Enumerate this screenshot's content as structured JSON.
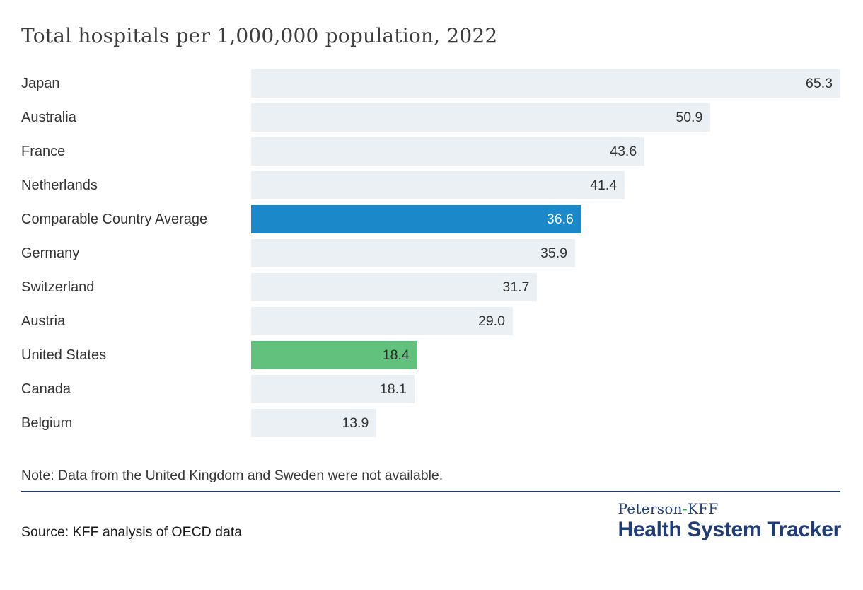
{
  "page": {
    "title": "Total hospitals per 1,000,000 population, 2022",
    "note": "Note: Data from the United Kingdom and Sweden were not available.",
    "source": "Source: KFF analysis of OECD data",
    "logo": {
      "peterson": "Peterson",
      "hyphen": "-",
      "kff": "KFF",
      "bottom": "Health System Tracker"
    }
  },
  "colors": {
    "bar_default": "#ebf0f4",
    "bar_average": "#1a88c9",
    "bar_us": "#62c17c",
    "value_on_light": "#333333",
    "value_on_blue": "#ffffff",
    "value_on_green": "#2b2b2b",
    "rule_navy": "#1c3a6d",
    "logo_navy": "#203d78",
    "logo_hyphen_green": "#3fa45b"
  },
  "chart_data": {
    "type": "bar",
    "orientation": "horizontal",
    "title": "Total hospitals per 1,000,000 population, 2022",
    "categories": [
      "Japan",
      "Australia",
      "France",
      "Netherlands",
      "Comparable Country Average",
      "Germany",
      "Switzerland",
      "Austria",
      "United States",
      "Canada",
      "Belgium"
    ],
    "values": [
      65.3,
      50.9,
      43.6,
      41.4,
      36.6,
      35.9,
      31.7,
      29.0,
      18.4,
      18.1,
      13.9
    ],
    "value_labels": [
      "65.3",
      "50.9",
      "43.6",
      "41.4",
      "36.6",
      "35.9",
      "31.7",
      "29.0",
      "18.4",
      "18.1",
      "13.9"
    ],
    "bar_styles": [
      "default",
      "default",
      "default",
      "default",
      "average",
      "default",
      "default",
      "default",
      "us",
      "default",
      "default"
    ],
    "xlim": [
      0,
      65.3
    ],
    "xlabel": "",
    "ylabel": "",
    "grid": false,
    "legend": "none",
    "value_label_position": "inside-end",
    "highlighted_series": {
      "average": "Comparable Country Average",
      "us": "United States"
    }
  }
}
